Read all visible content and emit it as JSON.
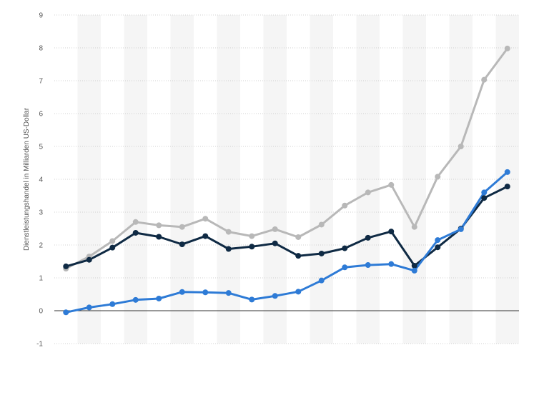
{
  "chart_data": {
    "type": "line",
    "title": "",
    "xlabel": "",
    "ylabel": "Dienstleistungshandel in Milliarden US-Dollar",
    "ylim": [
      -1,
      9
    ],
    "yticks": [
      "-1",
      "0",
      "1",
      "2",
      "3",
      "4",
      "5",
      "6",
      "7",
      "8",
      "9"
    ],
    "grid": true,
    "legend": "none",
    "series": [
      {
        "color": "#b8b8b8",
        "values": [
          1.28,
          1.65,
          2.12,
          2.7,
          2.6,
          2.55,
          2.8,
          2.4,
          2.27,
          2.48,
          2.24,
          2.62,
          3.2,
          3.6,
          3.83,
          2.55,
          4.08,
          5.0,
          7.03,
          7.98
        ]
      },
      {
        "color": "#0f2a44",
        "values": [
          1.35,
          1.55,
          1.92,
          2.37,
          2.25,
          2.02,
          2.27,
          1.88,
          1.95,
          2.05,
          1.67,
          1.74,
          1.9,
          2.22,
          2.41,
          1.37,
          1.93,
          2.5,
          3.43,
          3.78
        ]
      },
      {
        "color": "#2e7bd6",
        "values": [
          -0.05,
          0.1,
          0.2,
          0.33,
          0.37,
          0.57,
          0.56,
          0.54,
          0.34,
          0.45,
          0.58,
          0.92,
          1.32,
          1.39,
          1.42,
          1.22,
          2.15,
          2.48,
          3.6,
          4.22
        ]
      }
    ]
  }
}
